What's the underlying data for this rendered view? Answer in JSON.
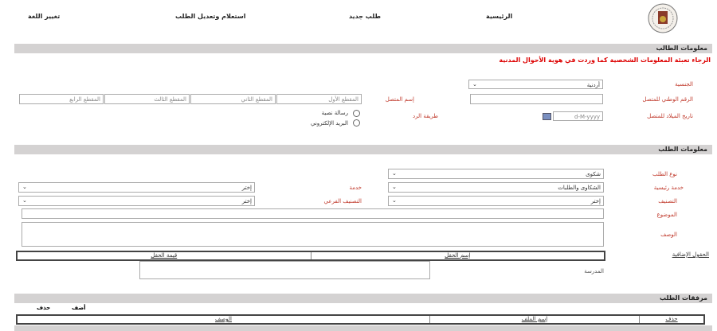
{
  "header": {
    "logo": "Hashemite Kingdom of Jordan emblem",
    "nav": [
      "الرئيسية",
      "طلب جديد",
      "استعلام وتعديل الطلب",
      "تغيير اللغة"
    ]
  },
  "applicant": {
    "title": "معلومات الطالب",
    "notice": "الرجاء تعبئة المعلومات الشخصية كما وردت في هوية الأحوال المدنية",
    "nationality_label": "الجنسية",
    "nationality_value": "أردنية",
    "national_id_label": "الرقم الوطني للمتصل",
    "national_id_value": "",
    "name_label": "إسم المتصل",
    "name_parts": [
      "المقطع الأول",
      "المقطع الثاني",
      "المقطع الثالث",
      "المقطع الرابع"
    ],
    "birthdate_label": "تاريخ الميلاد للمتصل",
    "birthdate_placeholder": "d-M-yyyy",
    "reply_label": "طريقة الرد",
    "reply_options": [
      "رسالة نصية",
      "البريد الإلكتروني"
    ]
  },
  "request": {
    "title": "معلومات الطلب",
    "type_label": "نوع الطلب",
    "type_value": "شكوى",
    "main_service_label": "خدمة رئيسية",
    "main_service_value": "الشكاوى والطلبات",
    "service_label": "خدمة",
    "service_value": "إختر",
    "category_label": "التصنيف",
    "category_value": "إختر",
    "subcategory_label": "التصنيف الفرعي",
    "subcategory_value": "إختر",
    "subject_label": "الموضوع",
    "description_label": "الوصف",
    "extra_fields_label": "الحقول الإضافية",
    "extra_columns": [
      "إسم الحقل",
      "قيمة الحقل"
    ],
    "school_label": "المدرسة"
  },
  "attachments": {
    "title": "مرفقات الطلب",
    "add": "أضف",
    "delete": "حذف",
    "columns": [
      "حذف",
      "إسم الملف",
      "الوصف"
    ]
  },
  "colors": {
    "label": "#c0392b",
    "section_bar": "#d4d2d2"
  }
}
